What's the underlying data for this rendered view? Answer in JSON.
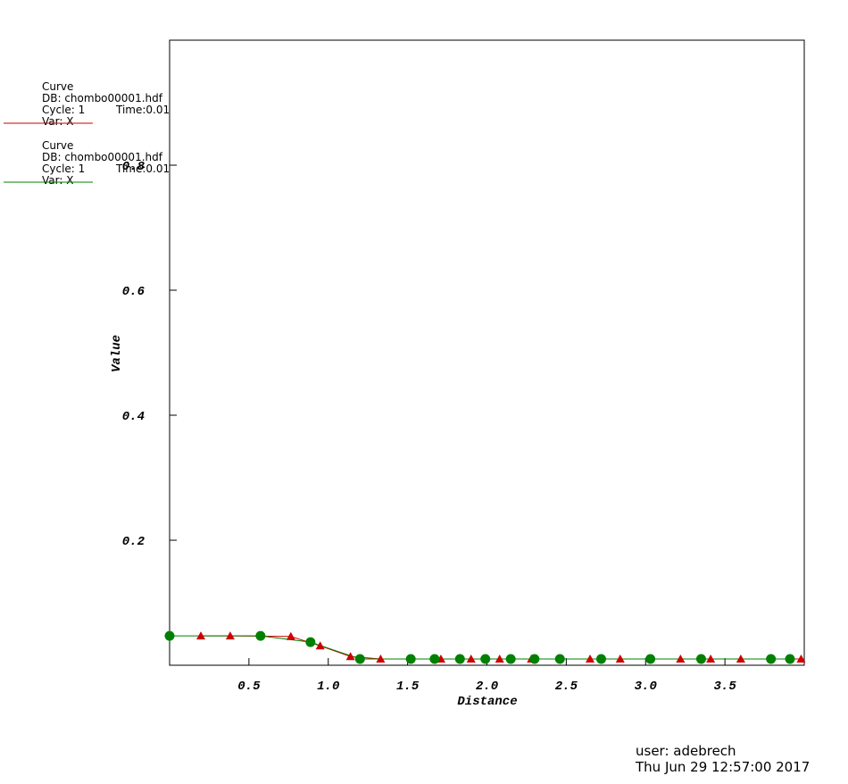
{
  "chart_data": {
    "type": "line",
    "xlabel": "Distance",
    "ylabel": "Value",
    "xlim": [
      0,
      4
    ],
    "ylim": [
      0,
      1
    ],
    "xticks": [
      0.5,
      {
        "value": 1,
        "label": "1.0"
      },
      1.5,
      {
        "value": 2,
        "label": "2.0"
      },
      2.5,
      {
        "value": 3,
        "label": "3.0"
      },
      3.5
    ],
    "yticks": [
      0.2,
      0.4,
      0.6,
      0.8
    ],
    "series": [
      {
        "name": "Curve",
        "db": "DB: chombo00001.hdf",
        "cycle": "Cycle: 1",
        "time": "Time:0.01",
        "var": "Var: X",
        "color": "#cc0000",
        "marker": "triangle",
        "x": [
          0.197,
          0.382,
          0.764,
          0.949,
          1.14,
          1.33,
          1.71,
          1.9,
          2.08,
          2.28,
          2.65,
          2.84,
          3.22,
          3.41,
          3.6,
          3.98
        ],
        "values": [
          0.047,
          0.047,
          0.046,
          0.031,
          0.014,
          0.01,
          0.01,
          0.01,
          0.01,
          0.01,
          0.01,
          0.01,
          0.01,
          0.01,
          0.01,
          0.01
        ]
      },
      {
        "name": "Curve",
        "db": "DB: chombo00001.hdf",
        "cycle": "Cycle: 1",
        "time": "Time:0.01",
        "var": "Var: X",
        "color": "#008000",
        "marker": "circle",
        "x": [
          0.0,
          0.573,
          0.888,
          1.2,
          1.52,
          1.67,
          1.83,
          1.99,
          2.15,
          2.3,
          2.46,
          2.72,
          3.03,
          3.35,
          3.79,
          3.91
        ],
        "values": [
          0.047,
          0.047,
          0.037,
          0.01,
          0.01,
          0.01,
          0.01,
          0.01,
          0.01,
          0.01,
          0.01,
          0.01,
          0.01,
          0.01,
          0.01,
          0.01
        ]
      }
    ],
    "user": "user: adebrech",
    "date": "Thu Jun 29 12:57:00 2017"
  }
}
